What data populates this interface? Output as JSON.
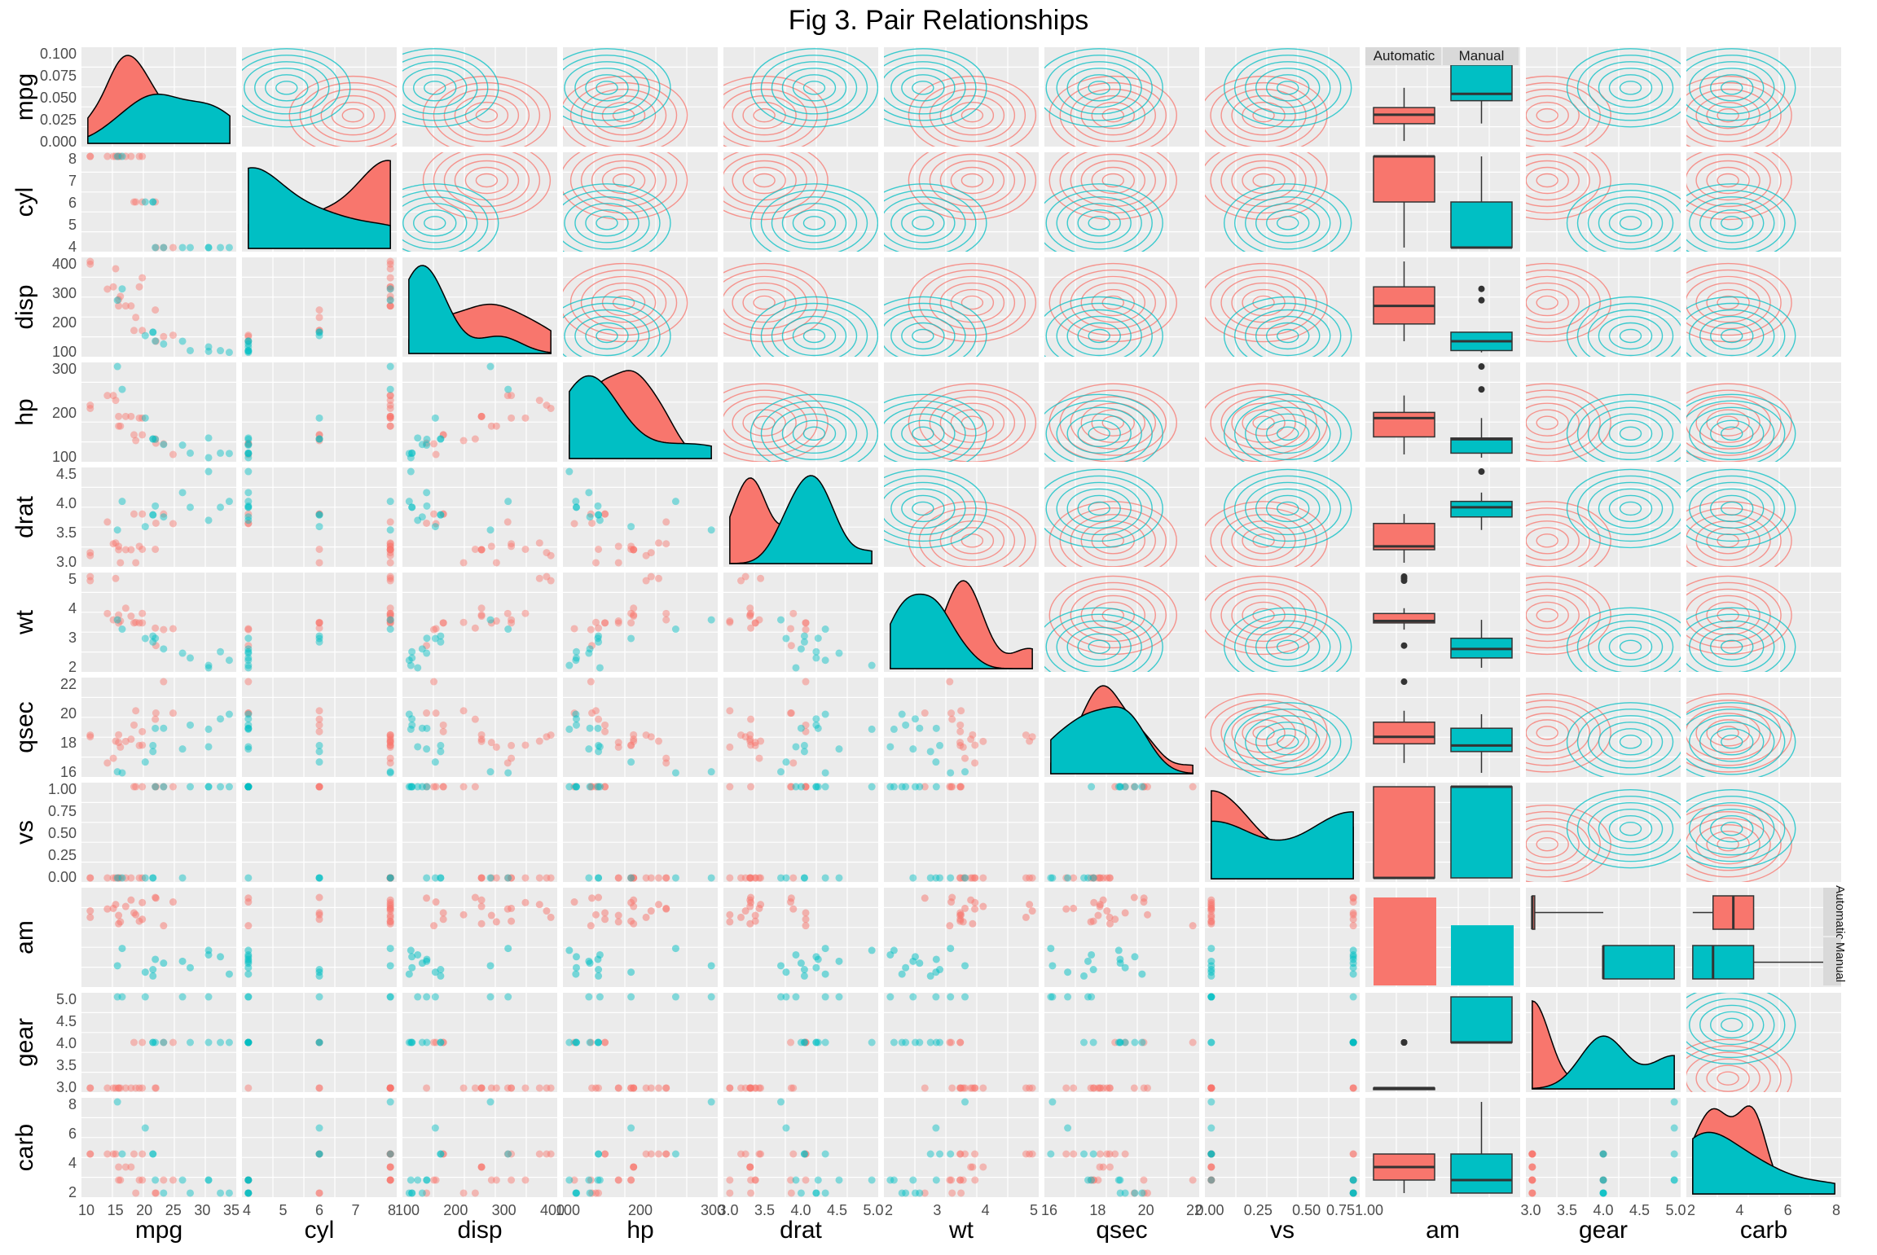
{
  "chart_data": {
    "type": "scatter",
    "title": "Fig 3. Pair Relationships",
    "grid": true,
    "colors": {
      "Automatic": "#F8766D",
      "Manual": "#00BFC4",
      "panel": "#EBEBEB",
      "strip": "#D9D9D9"
    },
    "groups": [
      "Automatic",
      "Manual"
    ],
    "variables": [
      "mpg",
      "cyl",
      "disp",
      "hp",
      "drat",
      "wt",
      "qsec",
      "vs",
      "am",
      "gear",
      "carb"
    ],
    "axes": {
      "mpg": {
        "range": [
          10,
          34
        ],
        "x_ticks": [
          "10",
          "15",
          "20",
          "25",
          "30",
          "35"
        ]
      },
      "cyl": {
        "range": [
          4,
          8
        ],
        "x_ticks": [
          "4",
          "5",
          "6",
          "7",
          "8"
        ],
        "y_ticks": [
          "4",
          "5",
          "6",
          "7",
          "8"
        ]
      },
      "disp": {
        "range": [
          70,
          472
        ],
        "x_ticks": [
          "100",
          "200",
          "300",
          "400"
        ],
        "y_ticks": [
          "100",
          "200",
          "300",
          "400"
        ]
      },
      "hp": {
        "range": [
          52,
          335
        ],
        "x_ticks": [
          "100",
          "200",
          "300"
        ],
        "y_ticks": [
          "100",
          "200",
          "300"
        ]
      },
      "drat": {
        "range": [
          2.76,
          4.93
        ],
        "x_ticks": [
          "3.0",
          "3.5",
          "4.0",
          "4.5",
          "5.0"
        ],
        "y_ticks": [
          "3.0",
          "3.5",
          "4.0",
          "4.5"
        ]
      },
      "wt": {
        "range": [
          1.513,
          5.424
        ],
        "x_ticks": [
          "2",
          "3",
          "4",
          "5"
        ],
        "y_ticks": [
          "2",
          "3",
          "4",
          "5"
        ]
      },
      "qsec": {
        "range": [
          14.5,
          22.9
        ],
        "x_ticks": [
          "16",
          "18",
          "20",
          "22"
        ],
        "y_ticks": [
          "16",
          "18",
          "20",
          "22"
        ]
      },
      "vs": {
        "range": [
          0,
          1
        ],
        "x_ticks": [
          "0.00",
          "0.25",
          "0.50",
          "0.751.00"
        ],
        "y_ticks": [
          "0.00",
          "0.25",
          "0.50",
          "0.75",
          "1.00"
        ]
      },
      "am": {
        "x_ticks": []
      },
      "gear": {
        "range": [
          3,
          5
        ],
        "x_ticks": [
          "3.0",
          "3.5",
          "4.0",
          "4.5",
          "5.0"
        ],
        "y_ticks": [
          "3.0",
          "3.5",
          "4.0",
          "4.5",
          "5.0"
        ]
      },
      "carb": {
        "range": [
          1,
          8
        ],
        "x_ticks": [
          "2",
          "4",
          "6",
          "8"
        ],
        "y_ticks": [
          "2",
          "4",
          "6",
          "8"
        ]
      }
    },
    "mpg_density_ticks": [
      "0.000",
      "0.025",
      "0.050",
      "0.075",
      "0.100"
    ],
    "am_strip_labels": [
      "Automatic",
      "Manual"
    ],
    "am_row_strip_labels": [
      "Automatic",
      "Manual"
    ],
    "rows": {
      "Automatic": [
        [
          21.4,
          6,
          258,
          110,
          3.08,
          3.215,
          19.44,
          1,
          3,
          1
        ],
        [
          18.7,
          8,
          360,
          175,
          3.15,
          3.44,
          17.02,
          0,
          3,
          2
        ],
        [
          18.1,
          6,
          225,
          105,
          2.76,
          3.46,
          20.22,
          1,
          3,
          1
        ],
        [
          14.3,
          8,
          360,
          245,
          3.21,
          3.57,
          15.84,
          0,
          3,
          4
        ],
        [
          24.4,
          4,
          146.7,
          62,
          3.69,
          3.19,
          20,
          1,
          4,
          2
        ],
        [
          22.8,
          4,
          140.8,
          95,
          3.92,
          3.15,
          22.9,
          1,
          4,
          2
        ],
        [
          19.2,
          6,
          167.6,
          123,
          3.92,
          3.44,
          18.3,
          1,
          4,
          4
        ],
        [
          17.8,
          6,
          167.6,
          123,
          3.92,
          3.44,
          18.9,
          1,
          4,
          4
        ],
        [
          16.4,
          8,
          275.8,
          180,
          3.07,
          4.07,
          17.4,
          0,
          3,
          3
        ],
        [
          17.3,
          8,
          275.8,
          180,
          3.07,
          3.73,
          17.6,
          0,
          3,
          3
        ],
        [
          15.2,
          8,
          275.8,
          180,
          3.07,
          3.78,
          18,
          0,
          3,
          3
        ],
        [
          10.4,
          8,
          472,
          205,
          2.93,
          5.25,
          17.98,
          0,
          3,
          4
        ],
        [
          10.4,
          8,
          460,
          215,
          3,
          5.424,
          17.82,
          0,
          3,
          4
        ],
        [
          14.7,
          8,
          440,
          230,
          3.23,
          5.345,
          17.42,
          0,
          3,
          4
        ],
        [
          21.5,
          4,
          120.1,
          97,
          3.7,
          2.465,
          20.01,
          1,
          3,
          1
        ],
        [
          15.5,
          8,
          318,
          150,
          2.76,
          3.52,
          16.87,
          0,
          3,
          2
        ],
        [
          15.2,
          8,
          304,
          150,
          3.15,
          3.435,
          17.3,
          0,
          3,
          2
        ],
        [
          13.3,
          8,
          350,
          245,
          3.73,
          3.84,
          15.41,
          0,
          3,
          4
        ],
        [
          19.2,
          8,
          400,
          175,
          3.08,
          3.845,
          17.05,
          0,
          3,
          2
        ]
      ],
      "Manual": [
        [
          21,
          6,
          160,
          110,
          3.9,
          2.62,
          16.46,
          0,
          4,
          4
        ],
        [
          21,
          6,
          160,
          110,
          3.9,
          2.875,
          17.02,
          0,
          4,
          4
        ],
        [
          22.8,
          4,
          108,
          93,
          3.85,
          2.32,
          18.61,
          1,
          4,
          1
        ],
        [
          32.4,
          4,
          78.7,
          66,
          4.08,
          2.2,
          19.47,
          1,
          4,
          1
        ],
        [
          30.4,
          4,
          75.7,
          52,
          4.93,
          1.615,
          18.52,
          1,
          4,
          2
        ],
        [
          33.9,
          4,
          71.1,
          65,
          4.22,
          1.835,
          19.9,
          1,
          4,
          1
        ],
        [
          27.3,
          4,
          79,
          66,
          4.08,
          1.935,
          18.9,
          1,
          4,
          1
        ],
        [
          26,
          4,
          120.3,
          91,
          4.43,
          2.14,
          16.7,
          0,
          5,
          2
        ],
        [
          30.4,
          4,
          95.1,
          113,
          3.77,
          1.513,
          16.9,
          1,
          5,
          2
        ],
        [
          15.8,
          8,
          351,
          264,
          4.22,
          3.17,
          14.5,
          0,
          5,
          4
        ],
        [
          19.7,
          6,
          145,
          175,
          3.62,
          2.77,
          15.5,
          0,
          5,
          6
        ],
        [
          15,
          8,
          301,
          335,
          3.54,
          3.57,
          14.6,
          0,
          5,
          8
        ],
        [
          21.4,
          4,
          121,
          109,
          4.11,
          2.78,
          18.6,
          1,
          4,
          2
        ]
      ]
    }
  }
}
